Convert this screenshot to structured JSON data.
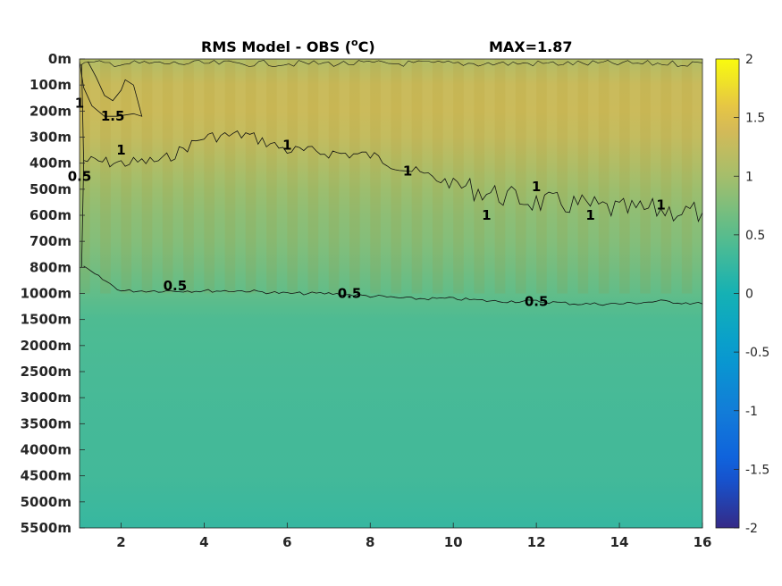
{
  "chart_data": {
    "type": "heatmap",
    "title": "RMS Model - OBS (°C)",
    "title_parts": {
      "main": "RMS Model - OBS (",
      "superscript": "o",
      "unit": "C)"
    },
    "max_annotation": "MAX=1.87",
    "xlim": [
      1,
      16
    ],
    "x_ticks": [
      2,
      4,
      6,
      8,
      10,
      12,
      14,
      16
    ],
    "y_tick_labels": [
      "0m",
      "100m",
      "200m",
      "300m",
      "400m",
      "500m",
      "600m",
      "700m",
      "800m",
      "1000m",
      "1500m",
      "2000m",
      "2500m",
      "3000m",
      "3500m",
      "4000m",
      "4500m",
      "5000m",
      "5500m"
    ],
    "depths_m": [
      0,
      100,
      200,
      300,
      400,
      500,
      600,
      700,
      800,
      1000,
      1500,
      2000,
      2500,
      3000,
      3500,
      4000,
      4500,
      5000,
      5500
    ],
    "colorbar": {
      "min": -2,
      "max": 2,
      "ticks": [
        "2",
        "1.5",
        "1",
        "0.5",
        "0",
        "-0.5",
        "-1",
        "-1.5",
        "-2"
      ],
      "colormap": "parula"
    },
    "field_profile": {
      "depth_index": [
        0,
        1,
        2,
        3,
        4,
        5,
        6,
        7,
        8,
        9,
        10,
        11,
        12,
        14,
        16,
        18
      ],
      "value": [
        1.1,
        1.3,
        1.32,
        1.25,
        1.1,
        0.95,
        0.85,
        0.78,
        0.68,
        0.55,
        0.42,
        0.4,
        0.38,
        0.35,
        0.34,
        0.25
      ]
    },
    "contours": [
      {
        "level": 1.5,
        "label": "1.5"
      },
      {
        "level": 1,
        "label": "1",
        "depth_index_by_x": [
          [
            1.1,
            3.9
          ],
          [
            2,
            4.0
          ],
          [
            3,
            3.9
          ],
          [
            4,
            3.0
          ],
          [
            5,
            2.9
          ],
          [
            6,
            3.5
          ],
          [
            7,
            3.6
          ],
          [
            8,
            3.7
          ],
          [
            9,
            4.3
          ],
          [
            10,
            4.8
          ],
          [
            11,
            5.2
          ],
          [
            12,
            5.5
          ],
          [
            13,
            5.6
          ],
          [
            14,
            5.8
          ],
          [
            15,
            5.8
          ],
          [
            16,
            5.9
          ]
        ]
      },
      {
        "level": 0.5,
        "label": "0.5",
        "depth_index_by_x": [
          [
            1.1,
            8.0
          ],
          [
            2,
            8.9
          ],
          [
            3,
            8.9
          ],
          [
            4,
            8.9
          ],
          [
            5,
            8.9
          ],
          [
            6,
            9.0
          ],
          [
            7,
            9.0
          ],
          [
            8,
            9.1
          ],
          [
            9,
            9.2
          ],
          [
            10,
            9.2
          ],
          [
            11,
            9.3
          ],
          [
            12,
            9.3
          ],
          [
            13,
            9.4
          ],
          [
            14,
            9.4
          ],
          [
            15,
            9.3
          ],
          [
            16,
            9.4
          ]
        ]
      }
    ],
    "contour_labels": [
      {
        "text": "1.5",
        "x": 1.8,
        "depth_index": 2.2
      },
      {
        "text": "1",
        "x": 1.0,
        "depth_index": 1.7
      },
      {
        "text": "1",
        "x": 2.0,
        "depth_index": 3.5
      },
      {
        "text": "1",
        "x": 6.0,
        "depth_index": 3.3
      },
      {
        "text": "1",
        "x": 8.9,
        "depth_index": 4.3
      },
      {
        "text": "1",
        "x": 10.8,
        "depth_index": 6.0
      },
      {
        "text": "1",
        "x": 12.0,
        "depth_index": 4.9
      },
      {
        "text": "1",
        "x": 13.3,
        "depth_index": 6.0
      },
      {
        "text": "1",
        "x": 15.0,
        "depth_index": 5.6
      },
      {
        "text": "0.5",
        "x": 1.0,
        "depth_index": 4.5
      },
      {
        "text": "0.5",
        "x": 3.3,
        "depth_index": 8.7
      },
      {
        "text": "0.5",
        "x": 7.5,
        "depth_index": 9.0
      },
      {
        "text": "0.5",
        "x": 12.0,
        "depth_index": 9.3
      }
    ]
  }
}
